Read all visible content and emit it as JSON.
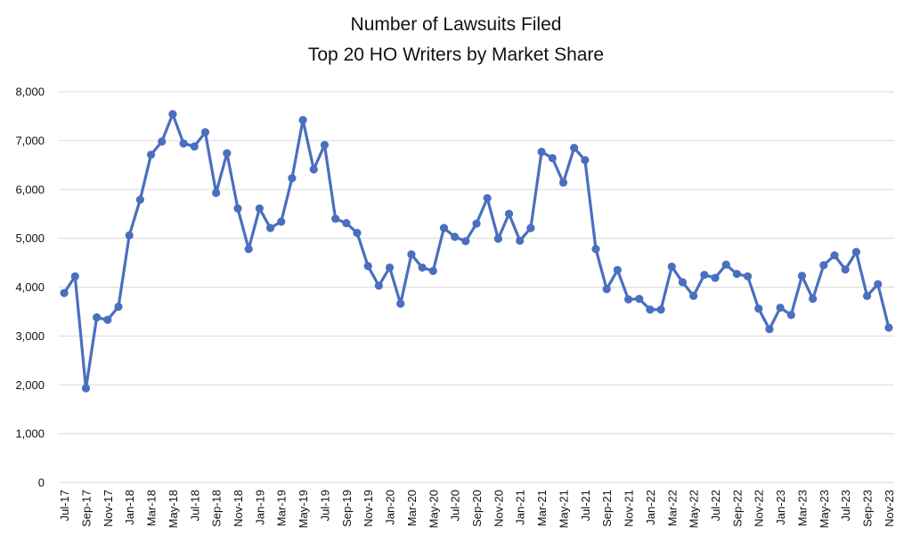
{
  "chart_data": {
    "type": "line",
    "title": "Number of Lawsuits Filed",
    "subtitle": "Top 20 HO Writers by Market Share",
    "xlabel": "",
    "ylabel": "",
    "ylim": [
      0,
      8000
    ],
    "y_ticks": [
      "0",
      "1,000",
      "2,000",
      "3,000",
      "4,000",
      "5,000",
      "6,000",
      "7,000",
      "8,000"
    ],
    "y_tick_values": [
      0,
      1000,
      2000,
      3000,
      4000,
      5000,
      6000,
      7000,
      8000
    ],
    "grid": true,
    "legend": "none",
    "series_color": "#4a6fbf",
    "categories": [
      "Jul-17",
      "Aug-17",
      "Sep-17",
      "Oct-17",
      "Nov-17",
      "Dec-17",
      "Jan-18",
      "Feb-18",
      "Mar-18",
      "Apr-18",
      "May-18",
      "Jun-18",
      "Jul-18",
      "Aug-18",
      "Sep-18",
      "Oct-18",
      "Nov-18",
      "Dec-18",
      "Jan-19",
      "Feb-19",
      "Mar-19",
      "Apr-19",
      "May-19",
      "Jun-19",
      "Jul-19",
      "Aug-19",
      "Sep-19",
      "Oct-19",
      "Nov-19",
      "Dec-19",
      "Jan-20",
      "Feb-20",
      "Mar-20",
      "Apr-20",
      "May-20",
      "Jun-20",
      "Jul-20",
      "Aug-20",
      "Sep-20",
      "Oct-20",
      "Nov-20",
      "Dec-20",
      "Jan-21",
      "Feb-21",
      "Mar-21",
      "Apr-21",
      "May-21",
      "Jun-21",
      "Jul-21",
      "Aug-21",
      "Sep-21",
      "Oct-21",
      "Nov-21",
      "Dec-21",
      "Jan-22",
      "Feb-22",
      "Mar-22",
      "Apr-22",
      "May-22",
      "Jun-22",
      "Jul-22",
      "Aug-22",
      "Sep-22",
      "Oct-22",
      "Nov-22",
      "Dec-22",
      "Jan-23",
      "Feb-23",
      "Mar-23",
      "Apr-23",
      "May-23",
      "Jun-23",
      "Jul-23",
      "Aug-23",
      "Sep-23",
      "Oct-23",
      "Nov-23"
    ],
    "x_tick_labels": [
      "Jul-17",
      "Sep-17",
      "Nov-17",
      "Jan-18",
      "Mar-18",
      "May-18",
      "Jul-18",
      "Sep-18",
      "Nov-18",
      "Jan-19",
      "Mar-19",
      "May-19",
      "Jul-19",
      "Sep-19",
      "Nov-19",
      "Jan-20",
      "Mar-20",
      "May-20",
      "Jul-20",
      "Sep-20",
      "Nov-20",
      "Jan-21",
      "Mar-21",
      "May-21",
      "Jul-21",
      "Sep-21",
      "Nov-21",
      "Jan-22",
      "Mar-22",
      "May-22",
      "Jul-22",
      "Sep-22",
      "Nov-22",
      "Jan-23",
      "Mar-23",
      "May-23",
      "Jul-23",
      "Sep-23",
      "Nov-23"
    ],
    "series": [
      {
        "values": [
          3880,
          4220,
          1930,
          3380,
          3330,
          3600,
          5060,
          5790,
          6710,
          6980,
          7540,
          6940,
          6880,
          7170,
          5930,
          6740,
          5610,
          4780,
          5610,
          5210,
          5340,
          6230,
          7420,
          6410,
          6910,
          5400,
          5310,
          5110,
          4430,
          4030,
          4400,
          3660,
          4670,
          4400,
          4330,
          5210,
          5030,
          4940,
          5300,
          5820,
          4990,
          5500,
          4950,
          5210,
          6770,
          6640,
          6140,
          6850,
          6600,
          4780,
          3960,
          4350,
          3750,
          3760,
          3540,
          3540,
          4420,
          4100,
          3820,
          4250,
          4190,
          4460,
          4270,
          4220,
          3560,
          3140,
          3580,
          3430,
          4230,
          3760,
          4450,
          4650,
          4360,
          4720,
          3820,
          4060,
          3170
        ]
      }
    ]
  }
}
